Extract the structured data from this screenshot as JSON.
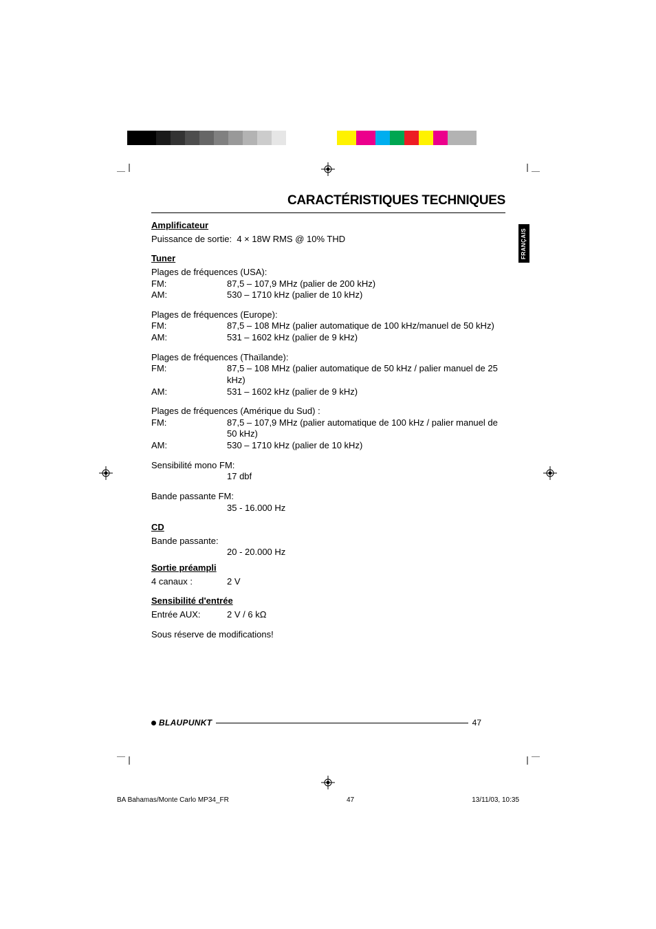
{
  "registration_bars": {
    "grayscale_colors": [
      "#000000",
      "#000000",
      "#1a1a1a",
      "#333333",
      "#4d4d4d",
      "#666666",
      "#808080",
      "#999999",
      "#b3b3b3",
      "#cccccc",
      "#e6e6e6",
      "#ffffff"
    ],
    "process_colors": [
      "#fff200",
      "#ec008c",
      "#00aeef",
      "#00a651",
      "#ed1c24",
      "#fff200",
      "#ec008c",
      "#b3b3b3",
      "#b3b3b3"
    ]
  },
  "page_title": "CARACTÉRISTIQUES TECHNIQUES",
  "tab_label": "FRANÇAIS",
  "sections": {
    "amplificateur": {
      "heading": "Amplificateur",
      "line1_label": "Puissance de sortie:",
      "line1_value": "4 × 18W RMS @ 10% THD"
    },
    "tuner": {
      "heading": "Tuner",
      "usa_heading": "Plages de fréquences (USA):",
      "usa_fm_label": "FM:",
      "usa_fm_value": "87,5 – 107,9 MHz (palier de 200 kHz)",
      "usa_am_label": "AM:",
      "usa_am_value": "530 – 1710 kHz (palier de 10 kHz)",
      "eu_heading": "Plages de fréquences (Europe):",
      "eu_fm_label": "FM:",
      "eu_fm_value": "87,5 – 108 MHz (palier automatique de 100 kHz/manuel de 50 kHz)",
      "eu_am_label": "AM:",
      "eu_am_value": "531 – 1602 kHz (palier de 9 kHz)",
      "th_heading": "Plages de fréquences (Thaïlande):",
      "th_fm_label": "FM:",
      "th_fm_value": "87,5 – 108 MHz (palier automatique de 50 kHz / palier manuel de 25 kHz)",
      "th_am_label": "AM:",
      "th_am_value": "531 – 1602 kHz (palier de 9 kHz)",
      "sa_heading": "Plages de fréquences (Amérique du Sud) :",
      "sa_fm_label": "FM:",
      "sa_fm_value": "87,5 – 107,9 MHz (palier automatique de 100 kHz / palier manuel de 50 kHz)",
      "sa_am_label": "AM:",
      "sa_am_value": "530 – 1710 kHz (palier de 10 kHz)",
      "mono_heading": "Sensibilité mono FM:",
      "mono_value": "17 dbf",
      "bw_heading": "Bande passante FM:",
      "bw_value": "35 - 16.000 Hz"
    },
    "cd": {
      "heading": "CD",
      "bw_label": "Bande passante:",
      "bw_value": "20 - 20.000 Hz"
    },
    "preamp": {
      "heading": "Sortie préampli",
      "label": "4 canaux :",
      "value": "2 V"
    },
    "input": {
      "heading": "Sensibilité d'entrée",
      "label": "Entrée AUX:",
      "value": "2 V / 6 kΩ"
    },
    "footer_note": "Sous réserve de modifications!"
  },
  "brand": "BLAUPUNKT",
  "page_number": "47",
  "imprint": {
    "doc": "BA Bahamas/Monte Carlo MP34_FR",
    "page": "47",
    "date": "13/11/03, 10:35"
  }
}
